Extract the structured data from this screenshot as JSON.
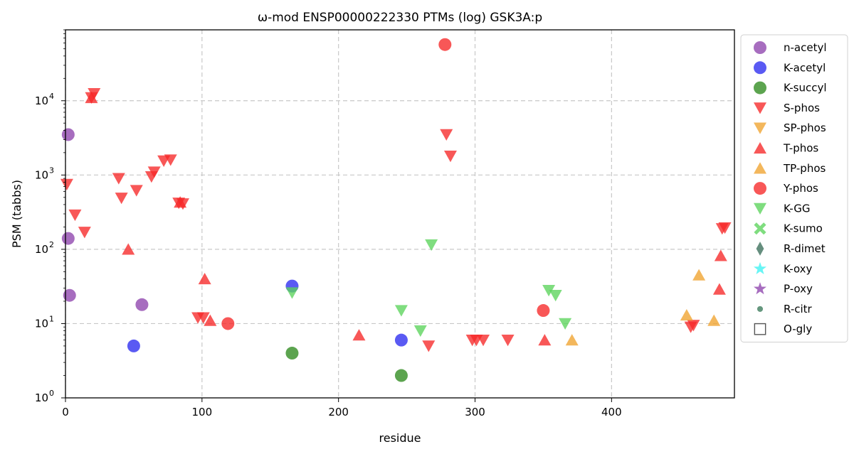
{
  "chart_data": {
    "type": "scatter",
    "title": "ω-mod ENSP00000222330 PTMs (log) GSK3A:p",
    "xlabel": "residue",
    "ylabel": "PSM (tabbs)",
    "xlim": [
      0,
      490
    ],
    "ylim": [
      1,
      90000
    ],
    "yscale": "log",
    "x_ticks": [
      0,
      100,
      200,
      300,
      400
    ],
    "y_ticks": [
      {
        "value": 1,
        "base": "10",
        "exp": "0"
      },
      {
        "value": 10,
        "base": "10",
        "exp": "1"
      },
      {
        "value": 100,
        "base": "10",
        "exp": "2"
      },
      {
        "value": 1000,
        "base": "10",
        "exp": "3"
      },
      {
        "value": 10000,
        "base": "10",
        "exp": "4"
      }
    ],
    "grid": true,
    "legend_position": "outside-right",
    "series": [
      {
        "name": "n-acetyl",
        "marker": "circle",
        "color": "#8e44ad",
        "points": [
          [
            2,
            3500
          ],
          [
            2,
            140
          ],
          [
            3,
            24
          ],
          [
            56,
            18
          ]
        ]
      },
      {
        "name": "K-acetyl",
        "marker": "circle",
        "color": "#2b2bef",
        "points": [
          [
            50,
            5
          ],
          [
            166,
            32
          ],
          [
            246,
            6
          ]
        ]
      },
      {
        "name": "K-succyl",
        "marker": "circle",
        "color": "#2e8b1e",
        "points": [
          [
            166,
            4
          ],
          [
            246,
            2
          ]
        ]
      },
      {
        "name": "S-phos",
        "marker": "triangle-down",
        "color": "#f62828",
        "points": [
          [
            1,
            750
          ],
          [
            7,
            290
          ],
          [
            14,
            170
          ],
          [
            19,
            11000
          ],
          [
            21,
            12500
          ],
          [
            39,
            900
          ],
          [
            41,
            490
          ],
          [
            52,
            620
          ],
          [
            63,
            950
          ],
          [
            65,
            1100
          ],
          [
            72,
            1550
          ],
          [
            77,
            1600
          ],
          [
            83,
            420
          ],
          [
            86,
            410
          ],
          [
            97,
            12
          ],
          [
            101,
            12
          ],
          [
            279,
            3500
          ],
          [
            282,
            1800
          ],
          [
            266,
            5
          ],
          [
            298,
            6
          ],
          [
            301,
            6
          ],
          [
            306,
            6
          ],
          [
            324,
            6
          ],
          [
            458,
            9
          ],
          [
            460,
            9.5
          ],
          [
            481,
            190
          ],
          [
            483,
            195
          ]
        ]
      },
      {
        "name": "SP-phos",
        "marker": "triangle-down",
        "color": "#f0a32e",
        "points": []
      },
      {
        "name": "T-phos",
        "marker": "triangle-up",
        "color": "#f62828",
        "points": [
          [
            19,
            11000
          ],
          [
            46,
            100
          ],
          [
            84,
            430
          ],
          [
            102,
            40
          ],
          [
            106,
            11
          ],
          [
            215,
            7
          ],
          [
            351,
            6
          ],
          [
            479,
            29
          ],
          [
            480,
            82
          ]
        ]
      },
      {
        "name": "TP-phos",
        "marker": "triangle-up",
        "color": "#f0a32e",
        "points": [
          [
            455,
            13
          ],
          [
            464,
            45
          ],
          [
            475,
            11
          ],
          [
            371,
            6
          ]
        ]
      },
      {
        "name": "Y-phos",
        "marker": "circle",
        "color": "#f62828",
        "points": [
          [
            119,
            10
          ],
          [
            278,
            57000
          ],
          [
            350,
            15
          ]
        ]
      },
      {
        "name": "K-GG",
        "marker": "triangle-down",
        "color": "#5bd45b",
        "points": [
          [
            166,
            26
          ],
          [
            246,
            15
          ],
          [
            260,
            8
          ],
          [
            268,
            115
          ],
          [
            354,
            28
          ],
          [
            359,
            24
          ],
          [
            366,
            10
          ]
        ]
      },
      {
        "name": "K-sumo",
        "marker": "x-cross",
        "color": "#5bd45b",
        "points": []
      },
      {
        "name": "R-dimet",
        "marker": "thin-diamond",
        "color": "#3a6e5a",
        "points": []
      },
      {
        "name": "K-oxy",
        "marker": "star",
        "color": "#3ef2f2",
        "points": []
      },
      {
        "name": "P-oxy",
        "marker": "star",
        "color": "#8e44ad",
        "points": []
      },
      {
        "name": "R-citr",
        "marker": "small-circle",
        "color": "#3a7a5a",
        "points": []
      },
      {
        "name": "O-gly",
        "marker": "open-square",
        "color": "#555555",
        "points": []
      }
    ]
  }
}
